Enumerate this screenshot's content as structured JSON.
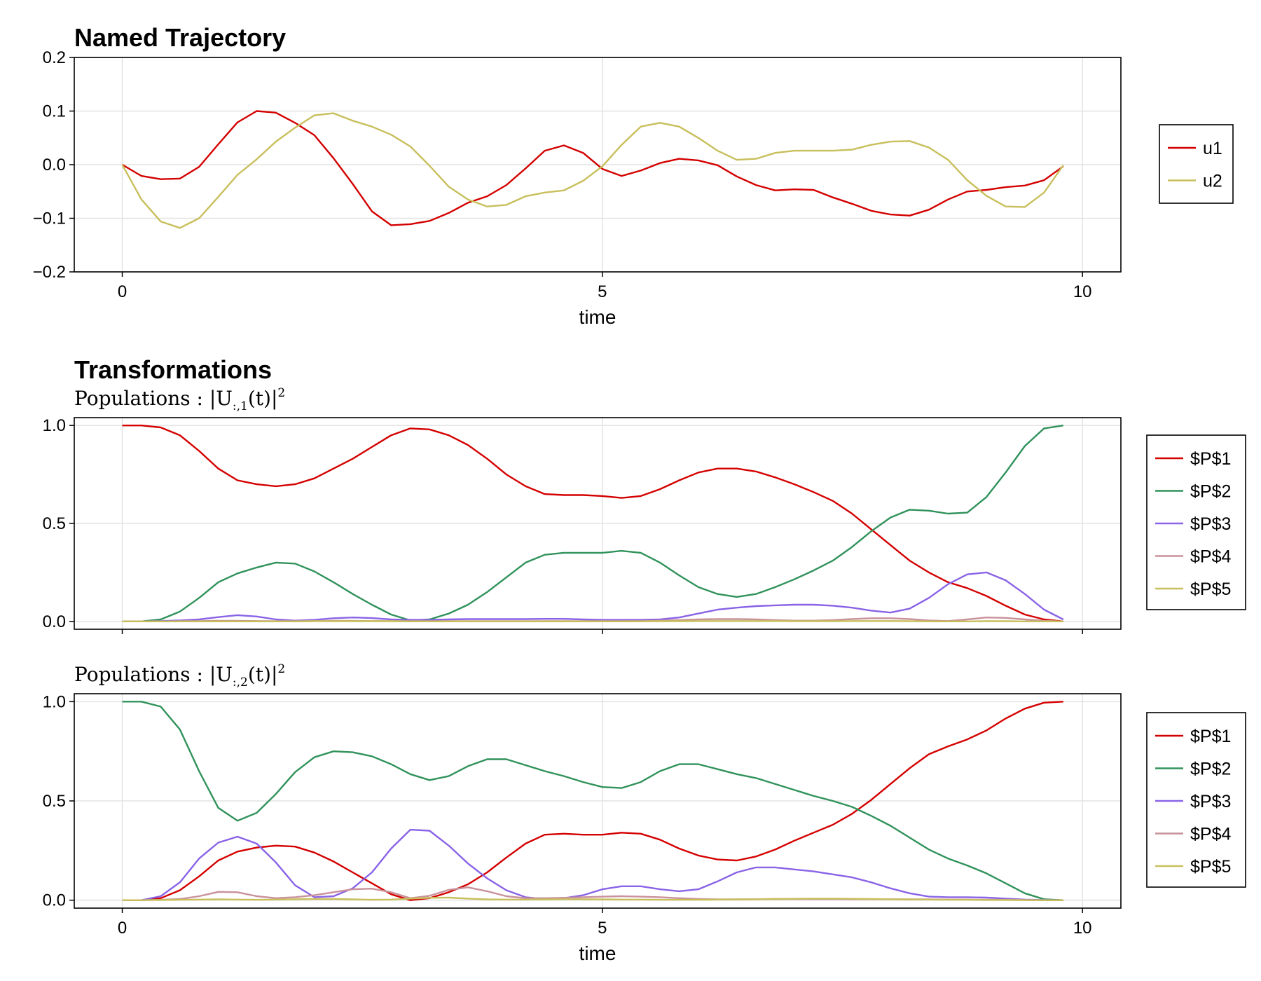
{
  "chart_data": [
    {
      "id": "traj",
      "type": "line",
      "title": "Named Trajectory",
      "xlabel": "time",
      "ylabel": "",
      "xlim": [
        -0.5,
        10.4
      ],
      "ylim": [
        -0.2,
        0.2
      ],
      "xticks": [
        0,
        5,
        10
      ],
      "xtick_labels": [
        "0",
        "5",
        "10"
      ],
      "yticks": [
        -0.2,
        -0.1,
        0.0,
        0.1,
        0.2
      ],
      "ytick_labels": [
        "−0.2",
        "−0.1",
        "0.0",
        "0.1",
        "0.2"
      ],
      "show_x_tick_labels": true,
      "legend": "right",
      "x": [
        0,
        0.2,
        0.4,
        0.6,
        0.8,
        1.0,
        1.2,
        1.4,
        1.6,
        1.8,
        2.0,
        2.2,
        2.4,
        2.6,
        2.8,
        3.0,
        3.2,
        3.4,
        3.6,
        3.8,
        4.0,
        4.2,
        4.4,
        4.6,
        4.8,
        5.0,
        5.2,
        5.4,
        5.6,
        5.8,
        6.0,
        6.2,
        6.4,
        6.6,
        6.8,
        7.0,
        7.2,
        7.4,
        7.6,
        7.8,
        8.0,
        8.2,
        8.4,
        8.6,
        8.8,
        9.0,
        9.2,
        9.4,
        9.6,
        9.8
      ],
      "series": [
        {
          "name": "u1",
          "color": "#d40000",
          "values": [
            0.0,
            -0.021,
            -0.027,
            -0.026,
            -0.004,
            0.038,
            0.079,
            0.1,
            0.097,
            0.078,
            0.055,
            0.012,
            -0.036,
            -0.087,
            -0.113,
            -0.111,
            -0.105,
            -0.09,
            -0.071,
            -0.059,
            -0.038,
            -0.007,
            0.026,
            0.036,
            0.022,
            -0.008,
            -0.021,
            -0.011,
            0.003,
            0.011,
            0.008,
            -0.001,
            -0.022,
            -0.038,
            -0.048,
            -0.046,
            -0.047,
            -0.061,
            -0.073,
            -0.086,
            -0.093,
            -0.095,
            -0.084,
            -0.065,
            -0.05,
            -0.047,
            -0.042,
            -0.039,
            -0.029,
            -0.003
          ]
        },
        {
          "name": "u2",
          "color": "#c8bf5c",
          "values": [
            0.0,
            -0.065,
            -0.106,
            -0.118,
            -0.1,
            -0.06,
            -0.019,
            0.01,
            0.043,
            0.069,
            0.092,
            0.096,
            0.082,
            0.071,
            0.056,
            0.034,
            -0.002,
            -0.041,
            -0.065,
            -0.078,
            -0.075,
            -0.059,
            -0.052,
            -0.048,
            -0.03,
            -0.003,
            0.037,
            0.071,
            0.078,
            0.071,
            0.05,
            0.026,
            0.009,
            0.011,
            0.022,
            0.026,
            0.026,
            0.026,
            0.028,
            0.037,
            0.043,
            0.044,
            0.032,
            0.009,
            -0.029,
            -0.058,
            -0.078,
            -0.079,
            -0.052,
            -0.001
          ]
        }
      ]
    },
    {
      "id": "pop1",
      "type": "line",
      "title": "Transformations",
      "subtitle": "Populations :  |U",
      "subtitle_sub": ":,1",
      "subtitle_tail": "(t)|",
      "subtitle_sup": "2",
      "xlabel": "",
      "xlim": [
        -0.5,
        10.4
      ],
      "ylim": [
        -0.04,
        1.04
      ],
      "xticks": [
        0,
        5,
        10
      ],
      "yticks": [
        0.0,
        0.5,
        1.0
      ],
      "ytick_labels": [
        "0.0",
        "0.5",
        "1.0"
      ],
      "show_x_tick_labels": false,
      "legend": "right",
      "x": [
        0,
        0.2,
        0.4,
        0.6,
        0.8,
        1.0,
        1.2,
        1.4,
        1.6,
        1.8,
        2.0,
        2.2,
        2.4,
        2.6,
        2.8,
        3.0,
        3.2,
        3.4,
        3.6,
        3.8,
        4.0,
        4.2,
        4.4,
        4.6,
        4.8,
        5.0,
        5.2,
        5.4,
        5.6,
        5.8,
        6.0,
        6.2,
        6.4,
        6.6,
        6.8,
        7.0,
        7.2,
        7.4,
        7.6,
        7.8,
        8.0,
        8.2,
        8.4,
        8.6,
        8.8,
        9.0,
        9.2,
        9.4,
        9.6,
        9.8
      ],
      "series": [
        {
          "name": "$P$1",
          "color": "#d40000",
          "values": [
            1.0,
            1.0,
            0.99,
            0.95,
            0.87,
            0.78,
            0.72,
            0.7,
            0.69,
            0.7,
            0.73,
            0.78,
            0.83,
            0.89,
            0.95,
            0.985,
            0.98,
            0.95,
            0.9,
            0.83,
            0.75,
            0.69,
            0.65,
            0.645,
            0.645,
            0.64,
            0.63,
            0.64,
            0.675,
            0.72,
            0.76,
            0.78,
            0.78,
            0.765,
            0.735,
            0.7,
            0.66,
            0.615,
            0.55,
            0.47,
            0.39,
            0.31,
            0.25,
            0.2,
            0.17,
            0.13,
            0.08,
            0.035,
            0.01,
            0.0
          ]
        },
        {
          "name": "$P$2",
          "color": "#30925b",
          "values": [
            0.0,
            0.0,
            0.01,
            0.05,
            0.12,
            0.2,
            0.245,
            0.275,
            0.3,
            0.295,
            0.255,
            0.2,
            0.14,
            0.085,
            0.035,
            0.005,
            0.01,
            0.04,
            0.085,
            0.15,
            0.225,
            0.3,
            0.34,
            0.35,
            0.35,
            0.35,
            0.36,
            0.35,
            0.3,
            0.235,
            0.175,
            0.14,
            0.125,
            0.14,
            0.175,
            0.215,
            0.26,
            0.31,
            0.38,
            0.46,
            0.53,
            0.57,
            0.565,
            0.55,
            0.555,
            0.635,
            0.76,
            0.895,
            0.985,
            1.0
          ]
        },
        {
          "name": "$P$3",
          "color": "#8a63e6",
          "values": [
            0.0,
            0.0,
            0.002,
            0.005,
            0.01,
            0.022,
            0.032,
            0.025,
            0.01,
            0.004,
            0.008,
            0.016,
            0.02,
            0.017,
            0.01,
            0.008,
            0.008,
            0.01,
            0.012,
            0.012,
            0.012,
            0.012,
            0.013,
            0.013,
            0.01,
            0.008,
            0.008,
            0.008,
            0.01,
            0.02,
            0.04,
            0.06,
            0.07,
            0.078,
            0.082,
            0.085,
            0.085,
            0.08,
            0.07,
            0.055,
            0.045,
            0.065,
            0.12,
            0.19,
            0.24,
            0.25,
            0.21,
            0.14,
            0.06,
            0.01
          ]
        },
        {
          "name": "$P$4",
          "color": "#c9919a",
          "values": [
            0.0,
            0.0,
            0.0,
            0.001,
            0.002,
            0.003,
            0.003,
            0.002,
            0.001,
            0.001,
            0.002,
            0.003,
            0.003,
            0.002,
            0.002,
            0.001,
            0.001,
            0.001,
            0.001,
            0.001,
            0.001,
            0.001,
            0.001,
            0.001,
            0.001,
            0.001,
            0.001,
            0.002,
            0.004,
            0.007,
            0.01,
            0.012,
            0.012,
            0.01,
            0.007,
            0.004,
            0.004,
            0.007,
            0.012,
            0.016,
            0.016,
            0.012,
            0.005,
            0.002,
            0.01,
            0.02,
            0.018,
            0.01,
            0.003,
            0.0
          ]
        },
        {
          "name": "$P$5",
          "color": "#c8bf5c",
          "values": [
            0.0,
            0.0,
            0.0,
            0.0,
            0.0,
            0.0,
            0.0,
            0.0,
            0.0,
            0.0,
            0.001,
            0.001,
            0.001,
            0.001,
            0.001,
            0.0,
            0.0,
            0.0,
            0.0,
            0.0,
            0.0,
            0.0,
            0.0,
            0.0,
            0.0,
            0.0,
            0.0,
            0.0,
            0.001,
            0.001,
            0.002,
            0.002,
            0.002,
            0.002,
            0.002,
            0.001,
            0.001,
            0.001,
            0.002,
            0.002,
            0.002,
            0.001,
            0.0,
            0.0,
            0.0,
            0.001,
            0.001,
            0.0,
            0.0,
            0.0
          ]
        }
      ]
    },
    {
      "id": "pop2",
      "type": "line",
      "subtitle": "Populations :  |U",
      "subtitle_sub": ":,2",
      "subtitle_tail": "(t)|",
      "subtitle_sup": "2",
      "xlabel": "time",
      "xlim": [
        -0.5,
        10.4
      ],
      "ylim": [
        -0.04,
        1.04
      ],
      "xticks": [
        0,
        5,
        10
      ],
      "xtick_labels": [
        "0",
        "5",
        "10"
      ],
      "yticks": [
        0.0,
        0.5,
        1.0
      ],
      "ytick_labels": [
        "0.0",
        "0.5",
        "1.0"
      ],
      "show_x_tick_labels": true,
      "legend": "right",
      "x": [
        0,
        0.2,
        0.4,
        0.6,
        0.8,
        1.0,
        1.2,
        1.4,
        1.6,
        1.8,
        2.0,
        2.2,
        2.4,
        2.6,
        2.8,
        3.0,
        3.2,
        3.4,
        3.6,
        3.8,
        4.0,
        4.2,
        4.4,
        4.6,
        4.8,
        5.0,
        5.2,
        5.4,
        5.6,
        5.8,
        6.0,
        6.2,
        6.4,
        6.6,
        6.8,
        7.0,
        7.2,
        7.4,
        7.6,
        7.8,
        8.0,
        8.2,
        8.4,
        8.6,
        8.8,
        9.0,
        9.2,
        9.4,
        9.6,
        9.8
      ],
      "series": [
        {
          "name": "$P$1",
          "color": "#d40000",
          "values": [
            0.0,
            0.0,
            0.01,
            0.05,
            0.12,
            0.2,
            0.245,
            0.265,
            0.275,
            0.27,
            0.24,
            0.195,
            0.14,
            0.085,
            0.03,
            0.0,
            0.01,
            0.04,
            0.08,
            0.14,
            0.215,
            0.285,
            0.33,
            0.335,
            0.33,
            0.33,
            0.34,
            0.335,
            0.305,
            0.26,
            0.225,
            0.205,
            0.2,
            0.22,
            0.255,
            0.3,
            0.34,
            0.38,
            0.435,
            0.505,
            0.585,
            0.665,
            0.735,
            0.775,
            0.81,
            0.855,
            0.915,
            0.965,
            0.995,
            1.0
          ]
        },
        {
          "name": "$P$2",
          "color": "#30925b",
          "values": [
            1.0,
            1.0,
            0.975,
            0.86,
            0.65,
            0.465,
            0.4,
            0.44,
            0.535,
            0.645,
            0.72,
            0.75,
            0.745,
            0.725,
            0.685,
            0.635,
            0.605,
            0.625,
            0.675,
            0.71,
            0.71,
            0.68,
            0.65,
            0.625,
            0.595,
            0.57,
            0.565,
            0.595,
            0.65,
            0.685,
            0.685,
            0.66,
            0.635,
            0.615,
            0.585,
            0.555,
            0.525,
            0.5,
            0.47,
            0.425,
            0.375,
            0.315,
            0.255,
            0.21,
            0.175,
            0.135,
            0.085,
            0.035,
            0.005,
            0.0
          ]
        },
        {
          "name": "$P$3",
          "color": "#8a63e6",
          "values": [
            0.0,
            0.0,
            0.02,
            0.09,
            0.21,
            0.29,
            0.32,
            0.285,
            0.19,
            0.075,
            0.015,
            0.02,
            0.06,
            0.14,
            0.26,
            0.355,
            0.35,
            0.275,
            0.185,
            0.11,
            0.05,
            0.015,
            0.005,
            0.01,
            0.025,
            0.055,
            0.07,
            0.07,
            0.055,
            0.045,
            0.055,
            0.095,
            0.14,
            0.165,
            0.165,
            0.155,
            0.145,
            0.13,
            0.115,
            0.09,
            0.06,
            0.035,
            0.018,
            0.015,
            0.015,
            0.013,
            0.008,
            0.003,
            0.001,
            0.0
          ]
        },
        {
          "name": "$P$4",
          "color": "#c9919a",
          "values": [
            0.0,
            0.0,
            0.002,
            0.006,
            0.02,
            0.042,
            0.04,
            0.02,
            0.01,
            0.015,
            0.025,
            0.04,
            0.055,
            0.058,
            0.04,
            0.01,
            0.022,
            0.052,
            0.065,
            0.045,
            0.02,
            0.01,
            0.01,
            0.012,
            0.015,
            0.018,
            0.02,
            0.018,
            0.015,
            0.01,
            0.006,
            0.004,
            0.004,
            0.005,
            0.006,
            0.006,
            0.006,
            0.006,
            0.005,
            0.005,
            0.005,
            0.004,
            0.004,
            0.003,
            0.003,
            0.002,
            0.002,
            0.001,
            0.0,
            0.0
          ]
        },
        {
          "name": "$P$5",
          "color": "#c8bf5c",
          "values": [
            0.0,
            0.0,
            0.001,
            0.002,
            0.003,
            0.004,
            0.003,
            0.002,
            0.003,
            0.005,
            0.006,
            0.006,
            0.004,
            0.002,
            0.003,
            0.008,
            0.012,
            0.013,
            0.008,
            0.004,
            0.003,
            0.003,
            0.004,
            0.005,
            0.005,
            0.004,
            0.003,
            0.003,
            0.002,
            0.002,
            0.002,
            0.003,
            0.004,
            0.005,
            0.006,
            0.007,
            0.008,
            0.008,
            0.007,
            0.006,
            0.005,
            0.004,
            0.003,
            0.002,
            0.002,
            0.001,
            0.001,
            0.0,
            0.0,
            0.0
          ]
        }
      ]
    }
  ]
}
